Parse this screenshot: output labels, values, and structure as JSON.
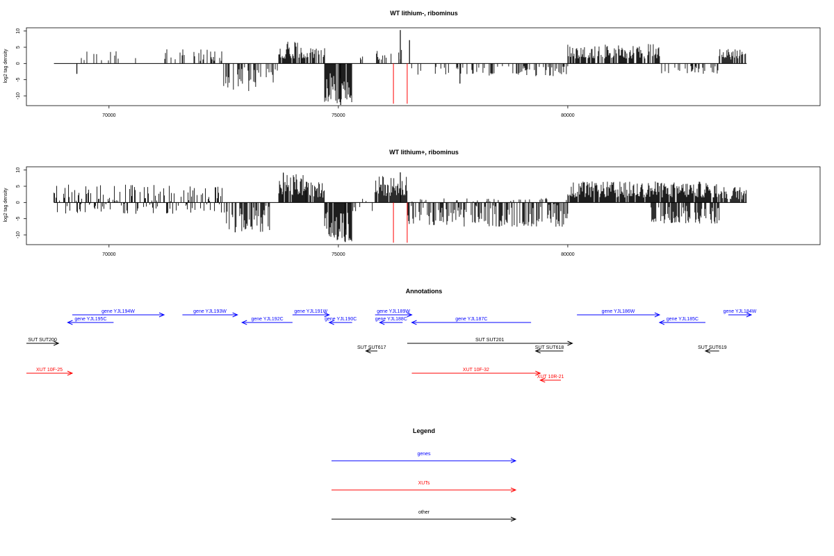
{
  "colors": {
    "genes": "#0000ff",
    "xuts": "#ff0000",
    "other": "#000000",
    "marker": "#ff0000",
    "bars": "#000000"
  },
  "chart_data": [
    {
      "type": "bar",
      "title": "WT lithium-, ribominus",
      "ylabel": "log2 tag density",
      "xlim": [
        68200,
        85500
      ],
      "ylim": [
        -13,
        11
      ],
      "yticks": [
        -10,
        -5,
        0,
        5,
        10
      ],
      "xticks": [
        70000,
        75000,
        80000
      ],
      "baseline_range": [
        68800,
        83900
      ],
      "red_markers": [
        76200,
        76500
      ],
      "segments": [
        {
          "x": [
            69200,
            70700
          ],
          "density": 0.16,
          "min": 0.8,
          "max": 3.8
        },
        {
          "x": [
            71200,
            72500
          ],
          "density": 0.3,
          "min": 0.8,
          "max": 4.8
        },
        {
          "x": [
            72500,
            73200
          ],
          "density": 0.4,
          "min": -8.5,
          "max": -1
        },
        {
          "x": [
            73200,
            73700
          ],
          "density": 0.3,
          "min": -6.5,
          "max": -1
        },
        {
          "x": [
            73700,
            74200
          ],
          "density": 0.9,
          "min": 1.5,
          "max": 7.2
        },
        {
          "x": [
            74200,
            74700
          ],
          "density": 0.6,
          "min": 1.5,
          "max": 5.2
        },
        {
          "x": [
            74700,
            75300
          ],
          "density": 0.95,
          "min": -12.5,
          "max": -3
        },
        {
          "x": [
            75300,
            75800
          ],
          "density": 0.15,
          "min": 0.8,
          "max": 3
        },
        {
          "x": [
            75800,
            76400
          ],
          "density": 0.45,
          "min": 1,
          "max": 4.5
        },
        {
          "x": [
            76400,
            77500
          ],
          "density": 0.2,
          "min": -3.5,
          "max": -0.8
        },
        {
          "x": [
            77500,
            80000
          ],
          "density": 0.3,
          "min": -4,
          "max": -0.8
        },
        {
          "x": [
            80000,
            82000
          ],
          "density": 0.85,
          "min": 1.5,
          "max": 6
        },
        {
          "x": [
            82000,
            83300
          ],
          "density": 0.35,
          "min": -3.2,
          "max": -0.8
        },
        {
          "x": [
            83300,
            83900
          ],
          "density": 0.7,
          "min": 1.2,
          "max": 4.5
        }
      ],
      "peaks": [
        {
          "x": 75050,
          "value": -12.8
        },
        {
          "x": 76350,
          "value": 10.3
        },
        {
          "x": 76550,
          "value": 7.2
        },
        {
          "x": 69300,
          "value": -3.2
        },
        {
          "x": 77650,
          "value": -6.2
        }
      ]
    },
    {
      "type": "bar",
      "title": "WT lithium+, ribominus",
      "ylabel": "log2 tag density",
      "xlim": [
        68200,
        85500
      ],
      "ylim": [
        -13,
        11
      ],
      "yticks": [
        -10,
        -5,
        0,
        5,
        10
      ],
      "xticks": [
        70000,
        75000,
        80000
      ],
      "baseline_range": [
        68800,
        83900
      ],
      "red_markers": [
        76200,
        76500
      ],
      "segments": [
        {
          "x": [
            68800,
            72500
          ],
          "density": 0.6,
          "min": -3.5,
          "max": 5.5
        },
        {
          "x": [
            72500,
            73500
          ],
          "density": 0.6,
          "min": -9.2,
          "max": -1
        },
        {
          "x": [
            73700,
            74300
          ],
          "density": 0.95,
          "min": 2,
          "max": 9
        },
        {
          "x": [
            74300,
            74700
          ],
          "density": 0.7,
          "min": 1.5,
          "max": 6.5
        },
        {
          "x": [
            74700,
            75300
          ],
          "density": 0.95,
          "min": -12.2,
          "max": -3
        },
        {
          "x": [
            75300,
            75800
          ],
          "density": 0.2,
          "min": -3,
          "max": 2.5
        },
        {
          "x": [
            75800,
            76500
          ],
          "density": 0.95,
          "min": 2,
          "max": 8.5
        },
        {
          "x": [
            76500,
            80000
          ],
          "density": 0.75,
          "min": -7.5,
          "max": 1.5
        },
        {
          "x": [
            80000,
            83300
          ],
          "density": 0.9,
          "min": 1.5,
          "max": 6.5
        },
        {
          "x": [
            81800,
            83300
          ],
          "density": 0.6,
          "min": -6.5,
          "max": -1
        },
        {
          "x": [
            83300,
            83900
          ],
          "density": 0.85,
          "min": 1,
          "max": 5
        }
      ],
      "peaks": [
        {
          "x": 75150,
          "value": -12.2
        },
        {
          "x": 76350,
          "value": 9.3
        },
        {
          "x": 72750,
          "value": -9.2
        },
        {
          "x": 73800,
          "value": 9.2
        }
      ]
    }
  ],
  "annotations": {
    "title": "Annotations",
    "features": [
      {
        "label": "gene YJL194W",
        "start": 69200,
        "end": 71200,
        "strand": "+",
        "kind": "gene",
        "row": 0
      },
      {
        "label": "gene YJL195C",
        "start": 69100,
        "end": 70100,
        "strand": "-",
        "kind": "gene",
        "row": 1
      },
      {
        "label": "gene YJL193W",
        "start": 71600,
        "end": 72800,
        "strand": "+",
        "kind": "gene",
        "row": 0
      },
      {
        "label": "gene YJL192C",
        "start": 72900,
        "end": 74000,
        "strand": "-",
        "kind": "gene",
        "row": 1
      },
      {
        "label": "gene YJL191W",
        "start": 74000,
        "end": 74800,
        "strand": "+",
        "kind": "gene",
        "row": 0
      },
      {
        "label": "gene YJL190C",
        "start": 74800,
        "end": 75300,
        "strand": "-",
        "kind": "gene",
        "row": 1
      },
      {
        "label": "gene YJL189W",
        "start": 75800,
        "end": 76600,
        "strand": "+",
        "kind": "gene",
        "row": 0
      },
      {
        "label": "gene YJL188C",
        "start": 75900,
        "end": 76400,
        "strand": "-",
        "kind": "gene",
        "row": 1
      },
      {
        "label": "gene YJL187C",
        "start": 76600,
        "end": 79200,
        "strand": "-",
        "kind": "gene",
        "row": 1
      },
      {
        "label": "gene YJL186W",
        "start": 80200,
        "end": 82000,
        "strand": "+",
        "kind": "gene",
        "row": 0
      },
      {
        "label": "gene YJL185C",
        "start": 82000,
        "end": 83000,
        "strand": "-",
        "kind": "gene",
        "row": 1
      },
      {
        "label": "gene YJL184W",
        "start": 83500,
        "end": 84000,
        "strand": "+",
        "kind": "gene",
        "row": 0
      },
      {
        "label": "SUT SUT200",
        "start": 68200,
        "end": 68900,
        "strand": "+",
        "kind": "other",
        "row": 2
      },
      {
        "label": "SUT SUT617",
        "start": 75600,
        "end": 75850,
        "strand": "-",
        "kind": "other",
        "row": 3
      },
      {
        "label": "SUT SUT201",
        "start": 76500,
        "end": 80100,
        "strand": "+",
        "kind": "other",
        "row": 2
      },
      {
        "label": "SUT SUT618",
        "start": 79300,
        "end": 79900,
        "strand": "-",
        "kind": "other",
        "row": 3
      },
      {
        "label": "SUT SUT619",
        "start": 83000,
        "end": 83300,
        "strand": "-",
        "kind": "other",
        "row": 3
      },
      {
        "label": "XUT 10F-25",
        "start": 68200,
        "end": 69200,
        "strand": "+",
        "kind": "xut",
        "row": 4
      },
      {
        "label": "XUT 10F-32",
        "start": 76600,
        "end": 79400,
        "strand": "+",
        "kind": "xut",
        "row": 4
      },
      {
        "label": "XUT 10R-21",
        "start": 79400,
        "end": 79850,
        "strand": "-",
        "kind": "xut",
        "row": 5
      }
    ]
  },
  "legend": {
    "title": "Legend",
    "items": [
      {
        "label": "genes",
        "kind": "gene"
      },
      {
        "label": "XUTs",
        "kind": "xut"
      },
      {
        "label": "other",
        "kind": "other"
      }
    ]
  }
}
